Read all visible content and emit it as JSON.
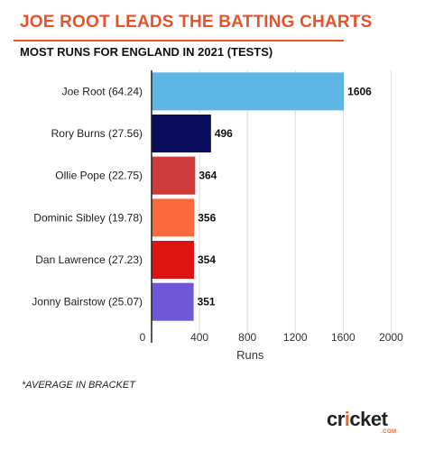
{
  "header": {
    "title": "JOE ROOT LEADS THE BATTING CHARTS",
    "subtitle": "MOST RUNS FOR ENGLAND IN 2021 (TESTS)",
    "accent_color": "#e8522a"
  },
  "chart_data": {
    "type": "bar",
    "orientation": "horizontal",
    "categories": [
      "Joe Root (64.24)",
      "Rory Burns (27.56)",
      "Ollie Pope (22.75)",
      "Dominic Sibley (19.78)",
      "Dan Lawrence (27.23)",
      "Jonny Bairstow (25.07)"
    ],
    "values": [
      1606,
      496,
      364,
      356,
      354,
      351
    ],
    "data_labels": [
      "1606",
      "496",
      "364",
      "356",
      "354",
      "351"
    ],
    "colors": [
      "#5db6e6",
      "#0a0c5e",
      "#cf3a3a",
      "#fa6a3d",
      "#e01313",
      "#6f57d8"
    ],
    "xlabel": "Runs",
    "ylabel": "",
    "xlim": [
      0,
      2200
    ],
    "xticks": [
      0,
      400,
      800,
      1200,
      1600,
      2000
    ],
    "xtick_labels": [
      "0",
      "400",
      "800",
      "1200",
      "1600",
      "2000"
    ],
    "grid": true
  },
  "footnote": "*AVERAGE IN BRACKET",
  "logo": {
    "main_a": "cr",
    "main_b": "i",
    "main_c": "cket",
    "sub": ".COM"
  }
}
